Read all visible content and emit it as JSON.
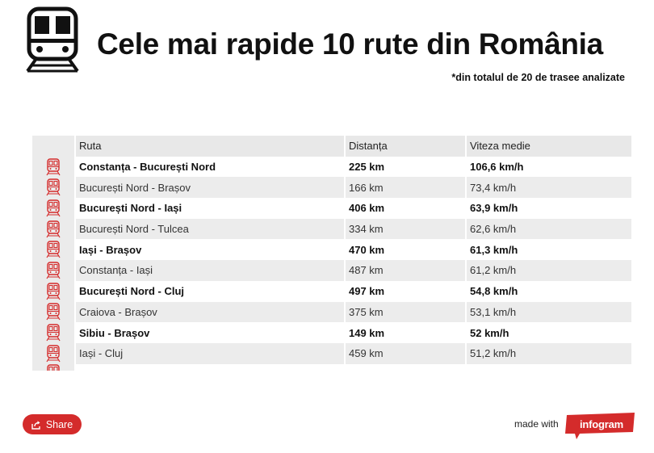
{
  "header": {
    "title": "Cele mai rapide 10 rute din România",
    "subtitle": "*din totalul de 20 de trasee analizate",
    "icon": "train-icon"
  },
  "table": {
    "columns": [
      "Ruta",
      "Distanța",
      "Viteza medie"
    ],
    "rows": [
      {
        "route": "Constanța - București Nord",
        "distance": "225 km",
        "speed": "106,6 km/h"
      },
      {
        "route": "București Nord - Brașov",
        "distance": "166 km",
        "speed": "73,4 km/h"
      },
      {
        "route": "București Nord - Iași",
        "distance": "406 km",
        "speed": "63,9 km/h"
      },
      {
        "route": "București Nord - Tulcea",
        "distance": "334 km",
        "speed": "62,6 km/h"
      },
      {
        "route": "Iași - Brașov",
        "distance": "470 km",
        "speed": "61,3 km/h"
      },
      {
        "route": "Constanța - Iași",
        "distance": "487 km",
        "speed": "61,2 km/h"
      },
      {
        "route": "București Nord - Cluj",
        "distance": "497 km",
        "speed": "54,8 km/h"
      },
      {
        "route": "Craiova - Brașov",
        "distance": "375 km",
        "speed": "53,1 km/h"
      },
      {
        "route": "Sibiu - Brașov",
        "distance": "149 km",
        "speed": "52 km/h"
      },
      {
        "route": "Iași - Cluj",
        "distance": "459 km",
        "speed": "51,2 km/h"
      }
    ],
    "row_icon": "train-icon",
    "icon_color": "#d42b2b"
  },
  "footer": {
    "share_label": "Share",
    "made_with": "made with",
    "brand": "infogram",
    "brand_color": "#d42b2b"
  }
}
